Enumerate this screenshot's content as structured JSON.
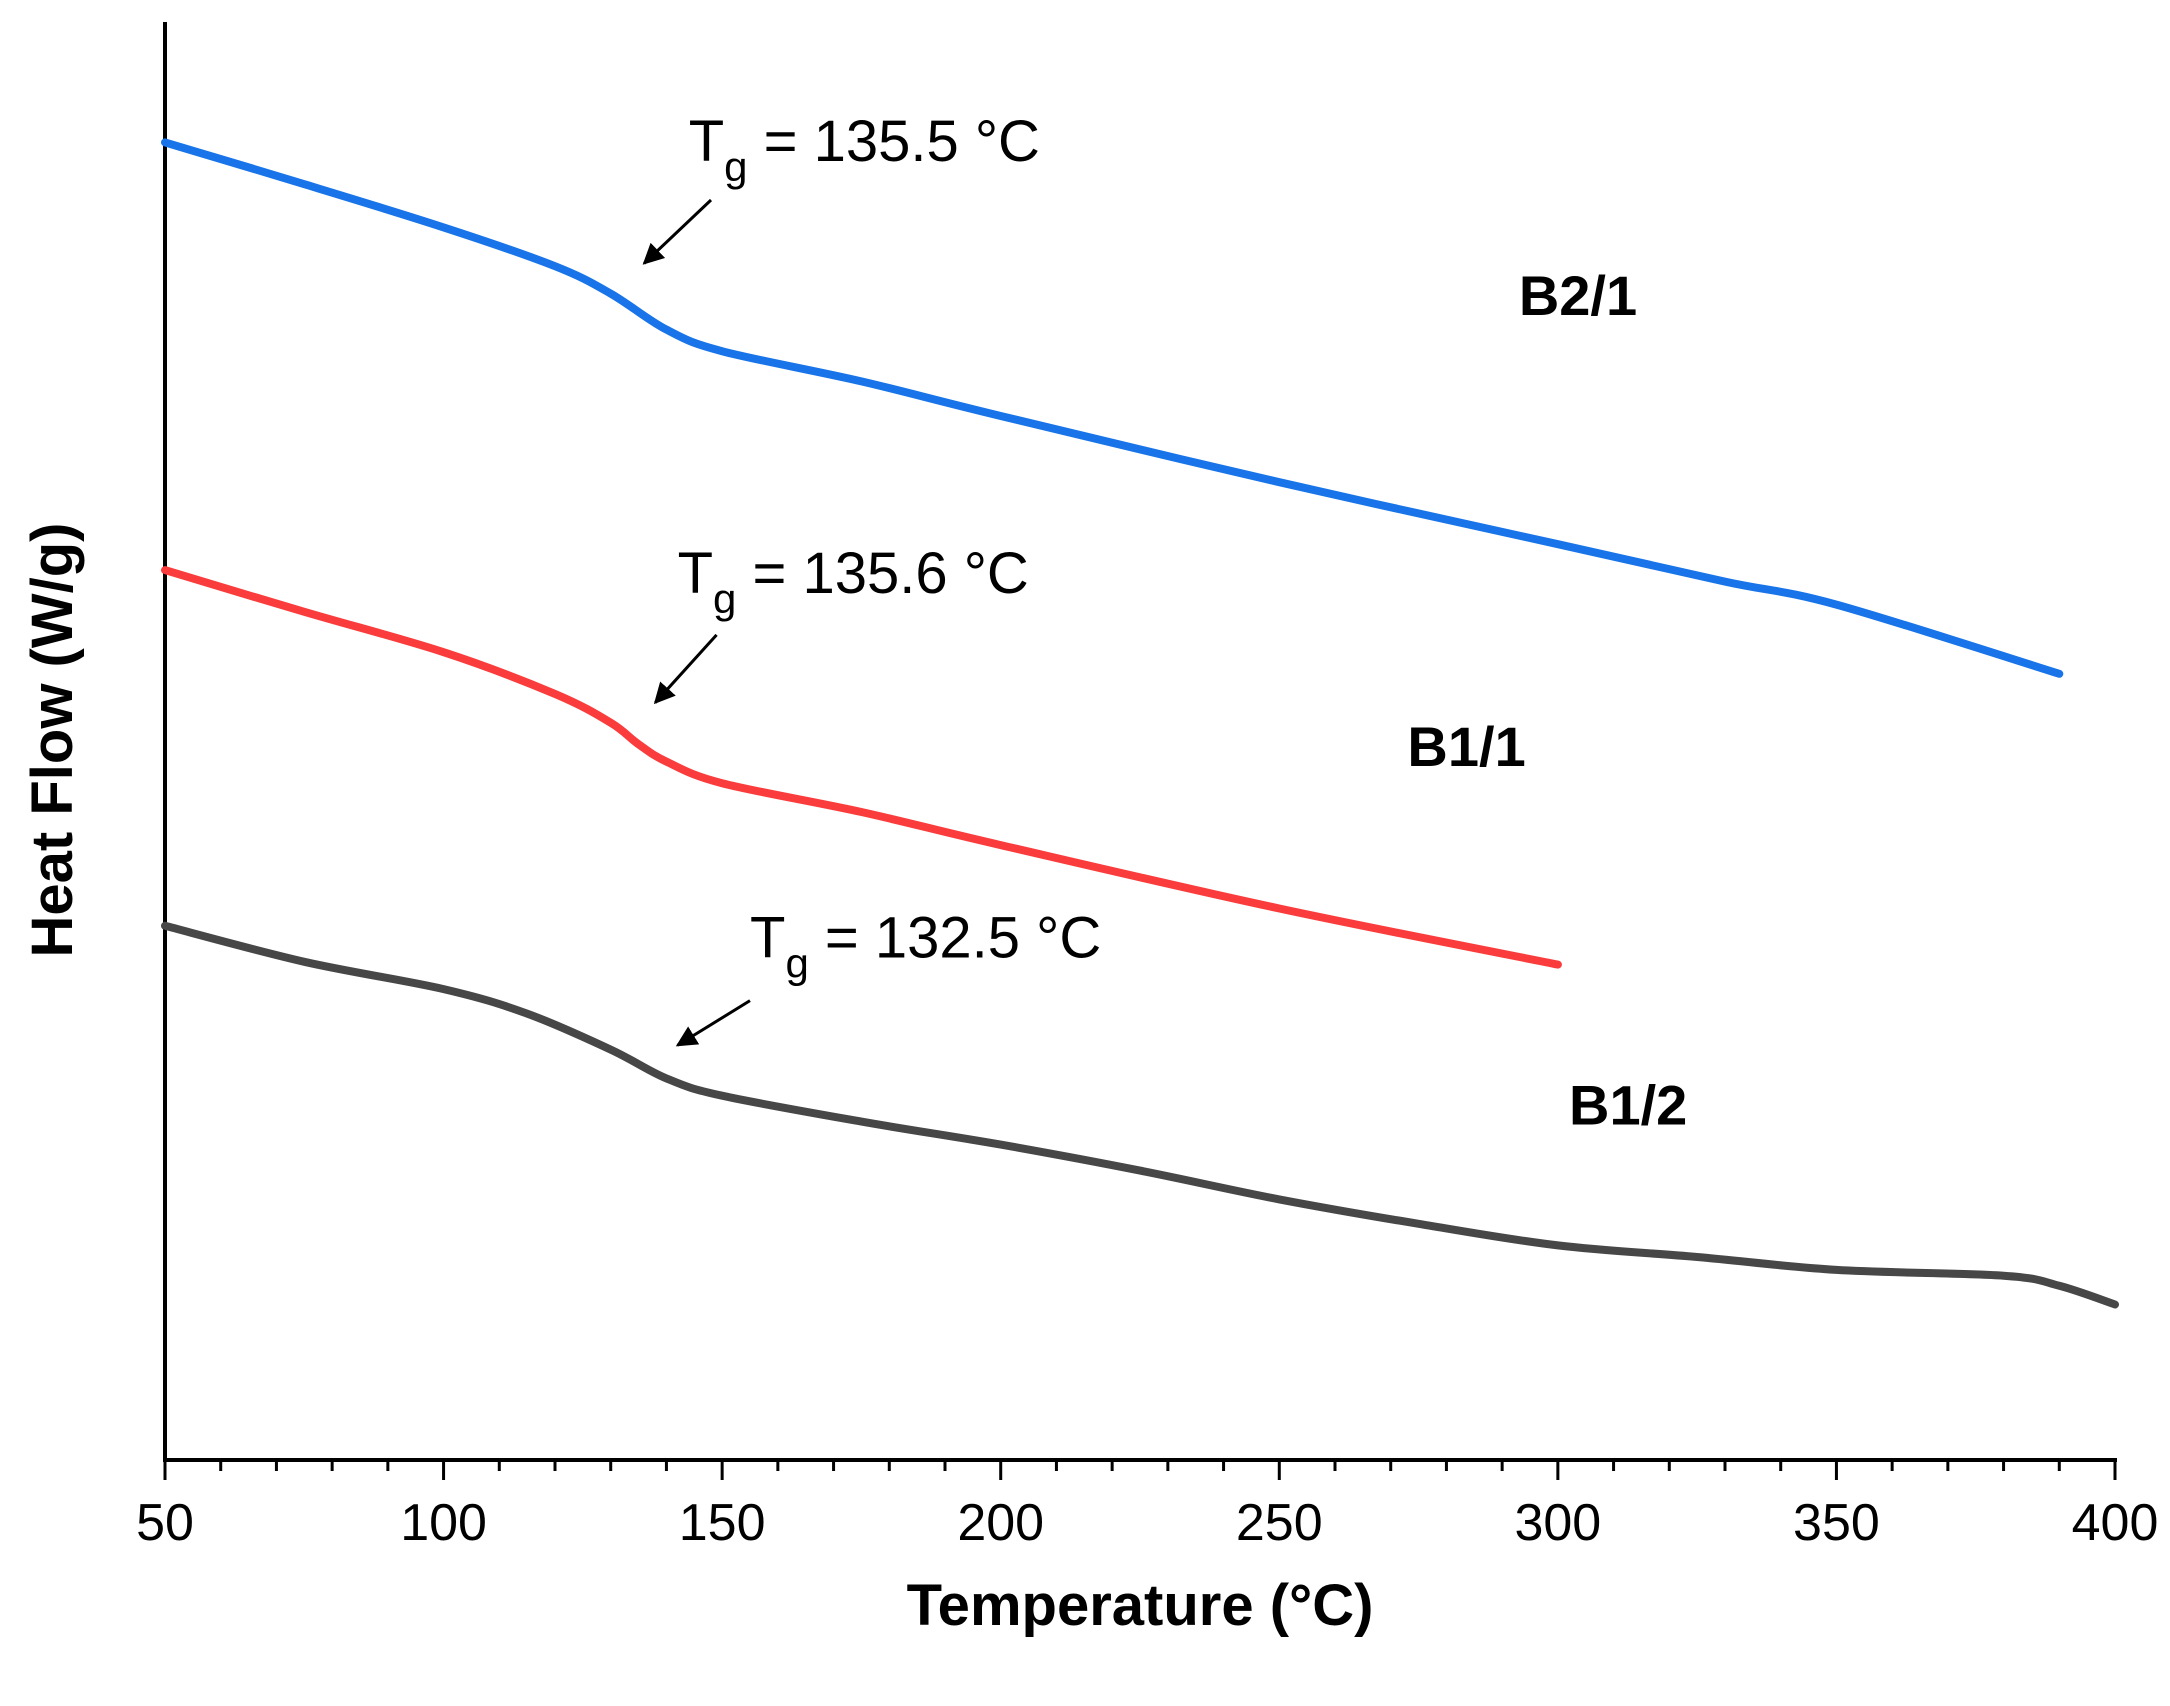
{
  "chart_data": {
    "type": "line",
    "title": "",
    "xlabel": "Temperature (°C)",
    "ylabel": "Heat Flow (W/g)",
    "xlim": [
      50,
      400
    ],
    "ylim": [
      0,
      100
    ],
    "x_ticks": [
      "50",
      "100",
      "150",
      "200",
      "250",
      "300",
      "350",
      "400"
    ],
    "x_tick_values": [
      50,
      100,
      150,
      200,
      250,
      300,
      350,
      400
    ],
    "y_ticks_shown": false,
    "grid": false,
    "units_note": "y values are relative (arbitrary units, no y tick labels shown)",
    "series": [
      {
        "name": "B2/1",
        "color": "#1874e8",
        "x": [
          50,
          75,
          100,
          120,
          130,
          140,
          150,
          175,
          200,
          250,
          300,
          330,
          350,
          390
        ],
        "y": [
          91.5,
          88.6,
          85.6,
          82.9,
          81.0,
          78.5,
          77.0,
          74.9,
          72.5,
          67.9,
          63.6,
          61.0,
          59.4,
          54.6
        ]
      },
      {
        "name": "B1/1",
        "color": "#fa3c3c",
        "x": [
          50,
          75,
          100,
          120,
          130,
          135,
          140,
          150,
          175,
          200,
          250,
          300
        ],
        "y": [
          61.8,
          58.9,
          56.1,
          53.2,
          51.2,
          49.7,
          48.5,
          47.0,
          45.0,
          42.7,
          38.3,
          34.4
        ]
      },
      {
        "name": "B1/2",
        "color": "#474747",
        "x": [
          50,
          75,
          100,
          115,
          130,
          140,
          150,
          175,
          200,
          225,
          250,
          275,
          300,
          325,
          350,
          380,
          390,
          400
        ],
        "y": [
          37.1,
          34.6,
          32.7,
          31.0,
          28.5,
          26.5,
          25.3,
          23.5,
          21.9,
          20.1,
          18.1,
          16.4,
          14.9,
          14.1,
          13.2,
          12.8,
          12.1,
          10.8
        ]
      }
    ],
    "series_labels": [
      {
        "text": "B2/1",
        "x": 293,
        "y": 79.5
      },
      {
        "text": "B1/1",
        "x": 273,
        "y": 48.2
      },
      {
        "text": "B1/2",
        "x": 302,
        "y": 23.3
      }
    ],
    "annotations": [
      {
        "prefix": "T",
        "sub": "g",
        "value_text": " = 135.5 °C",
        "tg": 135.5,
        "text_x": 144,
        "text_y": 90.2,
        "arrow_from": [
          148,
          87.5
        ],
        "arrow_to": [
          136,
          83.1
        ]
      },
      {
        "prefix": "T",
        "sub": "g",
        "value_text": " = 135.6 °C",
        "tg": 135.6,
        "text_x": 142,
        "text_y": 60.2,
        "arrow_from": [
          149,
          57.3
        ],
        "arrow_to": [
          138,
          52.6
        ]
      },
      {
        "prefix": "T",
        "sub": "g",
        "value_text": " = 132.5 °C",
        "tg": 132.5,
        "text_x": 155,
        "text_y": 34.9,
        "arrow_from": [
          155,
          31.9
        ],
        "arrow_to": [
          142,
          28.8
        ]
      }
    ]
  }
}
